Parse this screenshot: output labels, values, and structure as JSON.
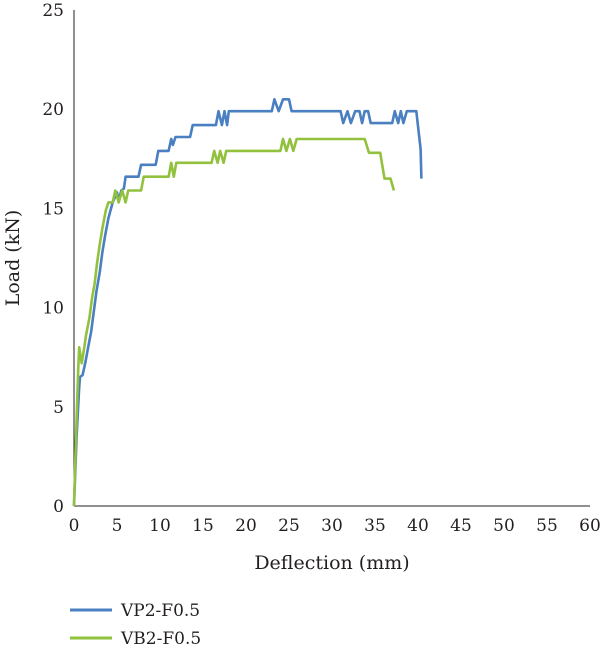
{
  "chart_data": {
    "type": "line",
    "title": "",
    "xlabel": "Deflection (mm)",
    "ylabel": "Load (kN)",
    "xlim": [
      0,
      60
    ],
    "ylim": [
      0,
      25
    ],
    "x_ticks": [
      "0",
      "5",
      "10",
      "15",
      "20",
      "25",
      "30",
      "35",
      "40",
      "45",
      "50",
      "55",
      "60"
    ],
    "y_ticks": [
      "0",
      "5",
      "10",
      "15",
      "20",
      "25"
    ],
    "grid": false,
    "legend_position": "bottom-left",
    "series": [
      {
        "name": "VP2-F0.5",
        "color": "#4a7fc1",
        "points": [
          [
            0,
            0
          ],
          [
            0.3,
            3.5
          ],
          [
            0.6,
            6.0
          ],
          [
            0.7,
            6.5
          ],
          [
            1.0,
            6.6
          ],
          [
            1.3,
            7.2
          ],
          [
            1.6,
            7.9
          ],
          [
            2.0,
            8.8
          ],
          [
            2.3,
            9.8
          ],
          [
            2.6,
            10.8
          ],
          [
            3.0,
            11.8
          ],
          [
            3.3,
            12.8
          ],
          [
            3.6,
            13.6
          ],
          [
            4.0,
            14.5
          ],
          [
            4.5,
            15.3
          ],
          [
            5.0,
            15.8
          ],
          [
            5.2,
            15.4
          ],
          [
            5.5,
            15.9
          ],
          [
            5.8,
            16.0
          ],
          [
            6.0,
            16.6
          ],
          [
            7.5,
            16.6
          ],
          [
            7.8,
            17.2
          ],
          [
            9.5,
            17.2
          ],
          [
            9.8,
            17.9
          ],
          [
            11.0,
            17.9
          ],
          [
            11.3,
            18.5
          ],
          [
            11.5,
            18.2
          ],
          [
            11.8,
            18.6
          ],
          [
            13.5,
            18.6
          ],
          [
            13.8,
            19.2
          ],
          [
            16.5,
            19.2
          ],
          [
            16.8,
            19.9
          ],
          [
            17.2,
            19.2
          ],
          [
            17.5,
            19.9
          ],
          [
            17.8,
            19.2
          ],
          [
            18.0,
            19.9
          ],
          [
            23.0,
            19.9
          ],
          [
            23.3,
            20.5
          ],
          [
            23.8,
            19.9
          ],
          [
            24.3,
            20.5
          ],
          [
            25.0,
            20.5
          ],
          [
            25.3,
            19.9
          ],
          [
            31.0,
            19.9
          ],
          [
            31.3,
            19.3
          ],
          [
            31.8,
            19.9
          ],
          [
            32.2,
            19.3
          ],
          [
            32.7,
            19.9
          ],
          [
            33.2,
            19.9
          ],
          [
            33.5,
            19.3
          ],
          [
            33.8,
            19.9
          ],
          [
            34.2,
            19.9
          ],
          [
            34.5,
            19.3
          ],
          [
            37.0,
            19.3
          ],
          [
            37.3,
            19.9
          ],
          [
            37.7,
            19.3
          ],
          [
            38.0,
            19.9
          ],
          [
            38.3,
            19.3
          ],
          [
            38.7,
            19.9
          ],
          [
            39.8,
            19.9
          ],
          [
            40.3,
            18.0
          ],
          [
            40.4,
            16.5
          ]
        ]
      },
      {
        "name": "VB2-F0.5",
        "color": "#92c13e",
        "points": [
          [
            0,
            0
          ],
          [
            0.2,
            3.0
          ],
          [
            0.5,
            7.0
          ],
          [
            0.6,
            8.0
          ],
          [
            0.9,
            7.2
          ],
          [
            1.2,
            8.0
          ],
          [
            1.4,
            8.6
          ],
          [
            1.8,
            9.5
          ],
          [
            2.1,
            10.5
          ],
          [
            2.4,
            11.2
          ],
          [
            2.7,
            12.3
          ],
          [
            3.0,
            13.2
          ],
          [
            3.3,
            14.0
          ],
          [
            3.7,
            14.9
          ],
          [
            4.0,
            15.3
          ],
          [
            4.5,
            15.3
          ],
          [
            4.8,
            15.9
          ],
          [
            5.2,
            15.3
          ],
          [
            5.6,
            15.9
          ],
          [
            6.0,
            15.3
          ],
          [
            6.3,
            15.9
          ],
          [
            7.8,
            15.9
          ],
          [
            8.1,
            16.6
          ],
          [
            11.0,
            16.6
          ],
          [
            11.3,
            17.3
          ],
          [
            11.6,
            16.6
          ],
          [
            11.9,
            17.3
          ],
          [
            16.0,
            17.3
          ],
          [
            16.3,
            17.9
          ],
          [
            16.7,
            17.3
          ],
          [
            17.0,
            17.9
          ],
          [
            17.4,
            17.3
          ],
          [
            17.7,
            17.9
          ],
          [
            24.0,
            17.9
          ],
          [
            24.3,
            18.5
          ],
          [
            24.7,
            17.9
          ],
          [
            25.1,
            18.5
          ],
          [
            25.5,
            17.9
          ],
          [
            25.9,
            18.5
          ],
          [
            33.8,
            18.5
          ],
          [
            34.3,
            17.8
          ],
          [
            35.6,
            17.8
          ],
          [
            36.1,
            16.5
          ],
          [
            36.8,
            16.5
          ],
          [
            37.2,
            15.9
          ]
        ]
      }
    ]
  }
}
